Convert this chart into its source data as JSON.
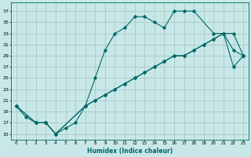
{
  "xlabel": "Humidex (Indice chaleur)",
  "bg_color": "#c8e8e8",
  "grid_color": "#a8c8c8",
  "line_color": "#006868",
  "xlim": [
    -0.5,
    23.5
  ],
  "ylim": [
    14.0,
    38.5
  ],
  "yticks": [
    15,
    17,
    19,
    21,
    23,
    25,
    27,
    29,
    31,
    33,
    35,
    37
  ],
  "xticks": [
    0,
    1,
    2,
    3,
    4,
    5,
    6,
    7,
    8,
    9,
    10,
    11,
    12,
    13,
    14,
    15,
    16,
    17,
    18,
    19,
    20,
    21,
    22,
    23
  ],
  "line1_x": [
    0,
    1,
    2,
    3,
    4,
    5,
    6,
    7,
    8,
    9,
    10,
    11,
    12,
    13,
    14,
    15,
    16,
    17,
    18,
    20,
    21,
    22,
    23
  ],
  "line1_y": [
    20,
    18,
    17,
    17,
    15,
    16,
    17,
    20,
    25,
    30,
    33,
    34,
    36,
    36,
    35,
    34,
    37,
    37,
    37,
    33,
    33,
    30,
    29
  ],
  "line2_x": [
    0,
    2,
    3,
    4,
    7,
    8,
    9,
    10,
    11,
    12,
    13,
    14,
    15,
    16,
    17,
    18,
    19,
    20,
    21,
    22,
    23
  ],
  "line2_y": [
    20,
    17,
    17,
    15,
    20,
    21,
    22,
    23,
    24,
    25,
    26,
    27,
    28,
    29,
    29,
    30,
    31,
    32,
    33,
    33,
    29
  ],
  "line3_x": [
    0,
    2,
    3,
    4,
    7,
    8,
    9,
    10,
    11,
    12,
    13,
    14,
    15,
    16,
    17,
    18,
    19,
    20,
    21,
    22,
    23
  ],
  "line3_y": [
    20,
    17,
    17,
    15,
    20,
    21,
    22,
    23,
    24,
    25,
    26,
    27,
    28,
    29,
    29,
    30,
    31,
    32,
    33,
    27,
    29
  ]
}
